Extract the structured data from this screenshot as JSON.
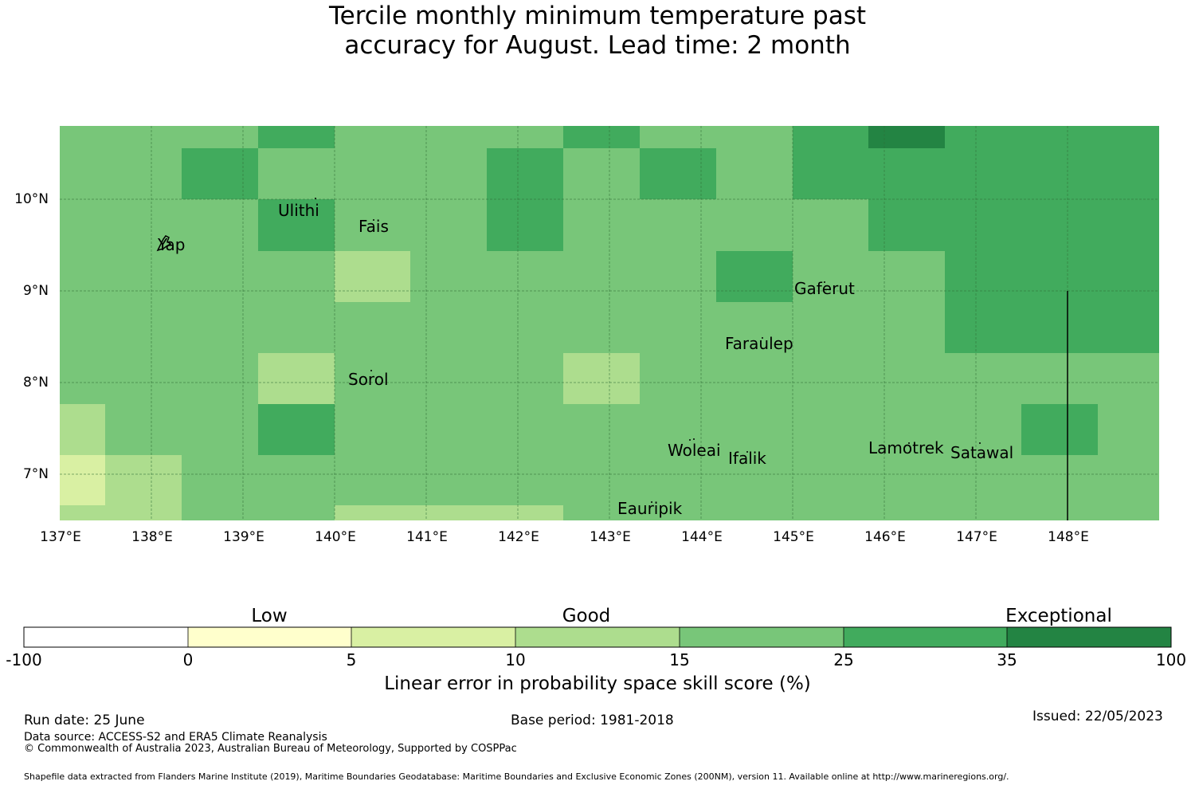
{
  "title_line1": "Tercile monthly minimum temperature past",
  "title_line2": "accuracy for August. Lead time: 2 month",
  "map": {
    "lon_labels": [
      "137°E",
      "138°E",
      "139°E",
      "140°E",
      "141°E",
      "142°E",
      "143°E",
      "144°E",
      "145°E",
      "146°E",
      "147°E",
      "148°E"
    ],
    "lat_labels": [
      "10°N",
      "9°N",
      "8°N",
      "7°N"
    ],
    "islands": [
      "Ulithi",
      "Fais",
      "Yap",
      "Gaferut",
      "Faraulep",
      "Sorol",
      "Woleai",
      "Ifalik",
      "Lamotrek",
      "Satawal",
      "Eauripik"
    ]
  },
  "colorbar": {
    "categories": [
      "Low",
      "Good",
      "Exceptional"
    ],
    "ticks": [
      "-100",
      "0",
      "5",
      "10",
      "15",
      "25",
      "35",
      "100"
    ],
    "colors": [
      "#ffffff",
      "#ffffcc",
      "#d9f0a3",
      "#addd8e",
      "#78c679",
      "#41ab5d",
      "#238443"
    ],
    "label": "Linear error in probability space skill score (%)"
  },
  "footer": {
    "run_date": "Run date: 25 June",
    "base_period": "Base period: 1981-2018",
    "issued": "Issued: 22/05/2023",
    "data_source": "Data source: ACCESS-S2 and ERA5 Climate Reanalysis",
    "copyright": "© Commonwealth of Australia 2023, Australian Bureau of Meteorology, Supported by COSPPac",
    "shapefile": "Shapefile data extracted from Flanders Marine Institute (2019), Maritime Boundaries Geodatabase: Maritime Boundaries and Exclusive Economic Zones (200NM), version 11. Available online at http://www.marineregions.org/."
  }
}
